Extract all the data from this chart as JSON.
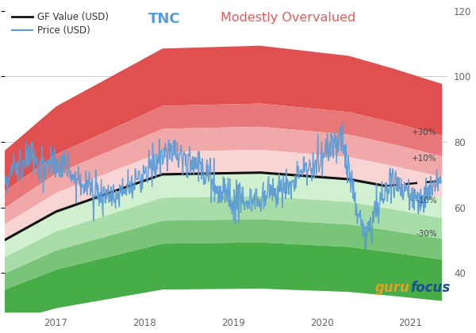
{
  "title_ticker": "TNC",
  "title_valuation": "Modestly Overvalued",
  "title_ticker_color": "#5B9BD5",
  "title_valuation_color": "#E05C5C",
  "legend_gf_label": "GF Value (USD)",
  "legend_price_label": "Price (USD)",
  "background_color": "#ffffff",
  "gf_line_color": "#111111",
  "price_line_color": "#5B9BD5",
  "dashed_line_color": "#111111",
  "red_bands": [
    "#E05050",
    "#E87878",
    "#F0A8A8",
    "#F8D4D4"
  ],
  "green_bands": [
    "#D0F0D0",
    "#A8DCA8",
    "#78C478",
    "#48AC48"
  ],
  "xmin": 2016.42,
  "xmax": 2021.42,
  "ymin": 28,
  "ymax": 122,
  "xticks": [
    2017,
    2018,
    2019,
    2020,
    2021
  ],
  "yticks_right": [
    40,
    60,
    80,
    100,
    120
  ],
  "pct_labels": [
    "+30%",
    "+10%",
    "-10%",
    "-30%"
  ],
  "watermark_orange": "#E8A020",
  "watermark_blue": "#1A4A9A",
  "figsize": [
    6.0,
    4.2
  ],
  "dpi": 100
}
